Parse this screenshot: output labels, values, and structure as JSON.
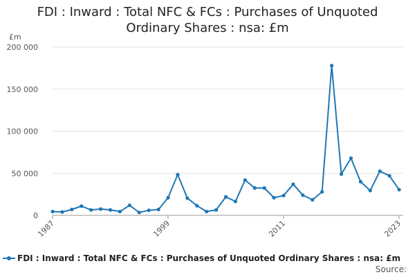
{
  "chart_data": {
    "type": "line",
    "title_lines": [
      "FDI : Inward : Total NFC & FCs : Purchases of Unquoted",
      "Ordinary Shares : nsa: £m"
    ],
    "ylabel": "£m",
    "xlabel": "",
    "ylim": [
      0,
      200000
    ],
    "xlim": [
      1987,
      2023
    ],
    "y_ticks": [
      0,
      50000,
      100000,
      150000,
      200000
    ],
    "y_tick_labels": [
      "0",
      "50 000",
      "100 000",
      "150 000",
      "200 000"
    ],
    "x_ticks": [
      1987,
      1999,
      2011,
      2023
    ],
    "x_tick_labels": [
      "1987",
      "1999",
      "2011",
      "2023"
    ],
    "grid": true,
    "legend_position": "bottom",
    "series": [
      {
        "name": "FDI : Inward : Total NFC & FCs : Purchases of Unquoted Ordinary Shares : nsa: £m",
        "color": "#1f77b4",
        "x": [
          1987,
          1988,
          1989,
          1990,
          1991,
          1992,
          1993,
          1994,
          1995,
          1996,
          1997,
          1998,
          1999,
          2000,
          2001,
          2002,
          2003,
          2004,
          2005,
          2006,
          2007,
          2008,
          2009,
          2010,
          2011,
          2012,
          2013,
          2014,
          2015,
          2016,
          2017,
          2018,
          2019,
          2020,
          2021,
          2022,
          2023
        ],
        "values": [
          4500,
          4000,
          7000,
          11000,
          6500,
          7500,
          6500,
          4500,
          12000,
          3500,
          6000,
          7000,
          21000,
          48500,
          20500,
          11500,
          4500,
          6500,
          22000,
          16500,
          42000,
          32500,
          32500,
          21000,
          23500,
          37000,
          24000,
          18500,
          28000,
          178000,
          49000,
          68000,
          40000,
          29500,
          52500,
          47000,
          30500
        ]
      }
    ]
  },
  "legend": {
    "label": "FDI : Inward : Total NFC & FCs : Purchases of Unquoted Ordinary Shares : nsa: £m"
  },
  "source_label": "Source:"
}
